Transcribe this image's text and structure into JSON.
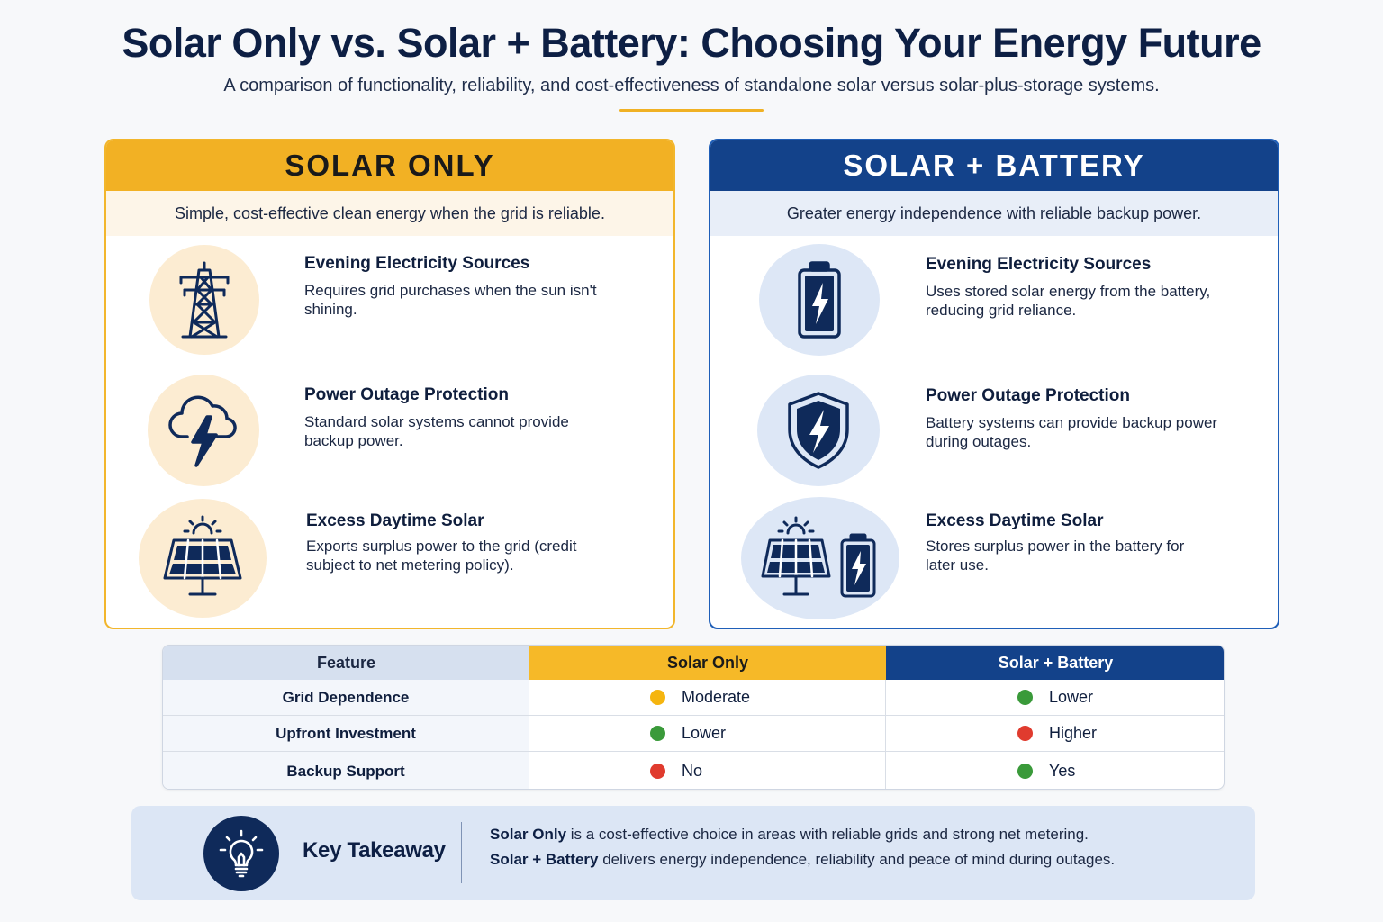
{
  "header": {
    "title": "Solar Only vs. Solar + Battery: Choosing Your Energy Future",
    "subtitle": "A comparison of functionality, reliability, and cost-effectiveness of standalone solar versus solar-plus-storage systems."
  },
  "colors": {
    "solar_accent": "#f2b124",
    "battery_accent": "#13428a",
    "status_moderate": "#f5b50f",
    "status_good": "#3a9a3a",
    "status_bad": "#e03b2e"
  },
  "solar_panel": {
    "title": "SOLAR ONLY",
    "tagline": "Simple, cost-effective clean energy when the grid is reliable.",
    "rows": [
      {
        "icon": "transmission-tower-icon",
        "title": "Evening Electricity Sources",
        "text": "Requires grid purchases when the sun isn't shining."
      },
      {
        "icon": "storm-cloud-lightning-icon",
        "title": "Power Outage Protection",
        "text": "Standard solar systems cannot provide backup power."
      },
      {
        "icon": "solar-panel-icon",
        "title": "Excess Daytime Solar",
        "text": "Exports surplus power to the grid (credit subject to net metering policy)."
      }
    ]
  },
  "battery_panel": {
    "title": "SOLAR + BATTERY",
    "tagline": "Greater energy independence with reliable backup power.",
    "rows": [
      {
        "icon": "battery-bolt-icon",
        "title": "Evening Electricity Sources",
        "text": "Uses stored solar energy from the battery, reducing grid reliance."
      },
      {
        "icon": "shield-bolt-icon",
        "title": "Power Outage Protection",
        "text": "Battery systems can provide backup power during outages."
      },
      {
        "icon": "solar-panel-battery-icon",
        "title": "Excess Daytime Solar",
        "text": "Stores surplus power in the battery for later use."
      }
    ]
  },
  "comparison_table": {
    "headers": [
      "Feature",
      "Solar Only",
      "Solar + Battery"
    ],
    "rows": [
      {
        "feature": "Grid Dependence",
        "solar_only": "Moderate",
        "solar_only_status": "moderate",
        "solar_battery": "Lower",
        "solar_battery_status": "good"
      },
      {
        "feature": "Upfront Investment",
        "solar_only": "Lower",
        "solar_only_status": "good",
        "solar_battery": "Higher",
        "solar_battery_status": "bad"
      },
      {
        "feature": "Backup Support",
        "solar_only": "No",
        "solar_only_status": "bad",
        "solar_battery": "Yes",
        "solar_battery_status": "good"
      }
    ]
  },
  "takeaway": {
    "icon": "lightbulb-icon",
    "label": "Key Takeaway",
    "line1_bold": "Solar Only",
    "line1_rest": " is a cost-effective choice in areas with reliable grids and strong net metering.",
    "line2_bold": "Solar + Battery",
    "line2_rest": " delivers energy independence, reliability and peace of mind during outages."
  }
}
